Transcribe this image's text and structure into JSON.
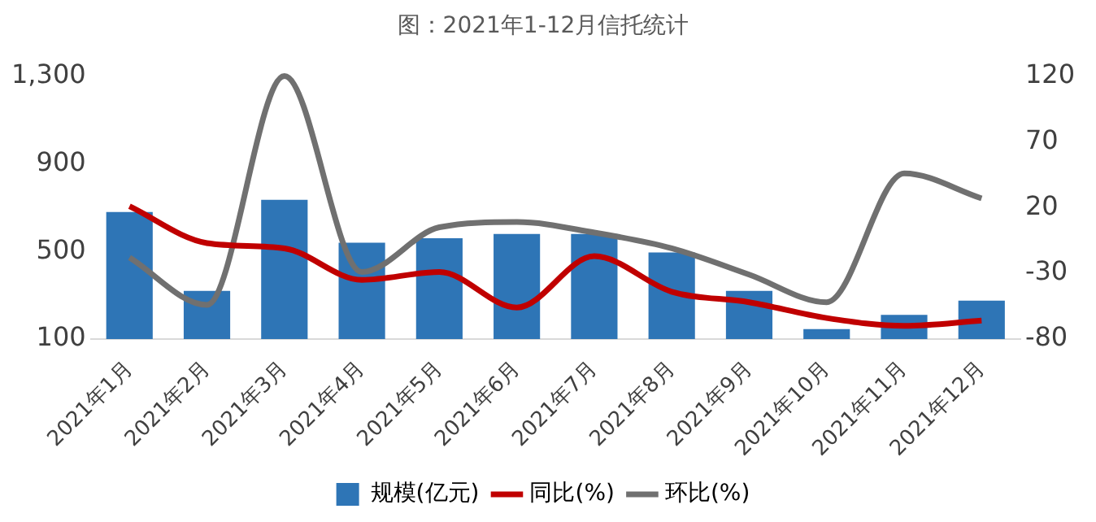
{
  "chart_data": {
    "type": "bar",
    "title": "图：2021年1-12月信托统计",
    "categories": [
      "2021年1月",
      "2021年2月",
      "2021年3月",
      "2021年4月",
      "2021年5月",
      "2021年6月",
      "2021年7月",
      "2021年8月",
      "2021年9月",
      "2021年10月",
      "2021年11月",
      "2021年12月"
    ],
    "series": [
      {
        "name": "规模(亿元)",
        "color": "#2e75b6",
        "values": [
          680,
          320,
          735,
          540,
          560,
          580,
          580,
          495,
          320,
          145,
          210,
          275
        ]
      },
      {
        "name": "同比(%)",
        "type": "line",
        "axis": "y2",
        "color": "#c00000",
        "values": [
          21,
          -7,
          -11,
          -35,
          -29,
          -56,
          -17,
          -44,
          -52,
          -64,
          -70,
          -66
        ]
      },
      {
        "name": "环比(%)",
        "type": "line",
        "axis": "y2",
        "color": "#707070",
        "values": [
          -18,
          -54,
          120,
          -29,
          5,
          9,
          1,
          -11,
          -31,
          -52,
          46,
          27
        ]
      }
    ],
    "ylim": [
      100,
      1300
    ],
    "yticks": [
      100,
      500,
      900,
      {
        "value": 1300,
        "label": "1,300"
      }
    ],
    "y2lim": [
      -80,
      120
    ],
    "y2ticks": [
      -80,
      -30,
      20,
      70,
      120
    ],
    "grid": false,
    "legend": "bottom",
    "marker": "none",
    "line_style": "solid"
  }
}
